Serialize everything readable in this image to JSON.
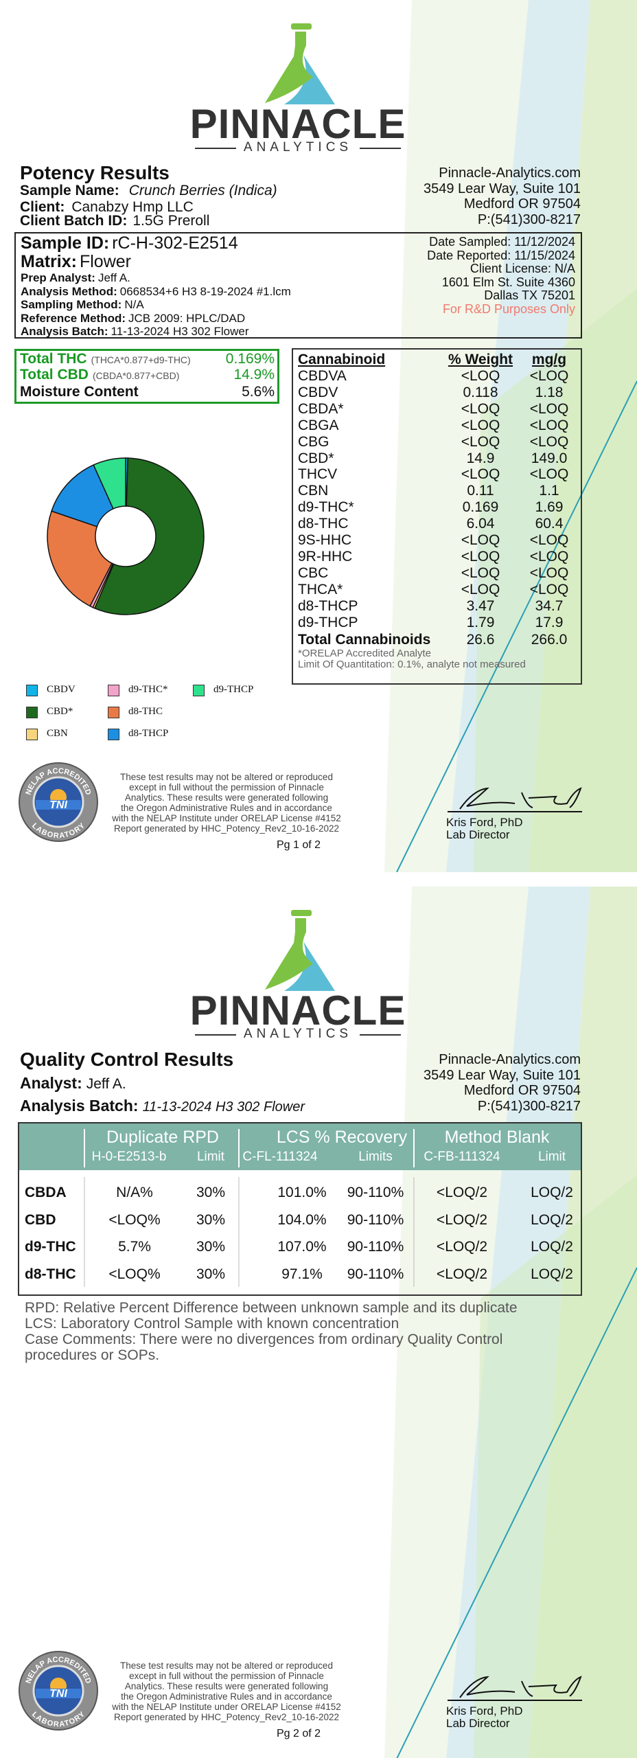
{
  "company": {
    "name": "PINNACLE",
    "sub": "ANALYTICS",
    "website": "Pinnacle-Analytics.com",
    "address1": "3549 Lear Way, Suite 101",
    "address2": "Medford OR 97504",
    "phone": "P:(541)300-8217"
  },
  "seal": {
    "top": "NELAP ACCREDITED",
    "center": "TNI",
    "bottom": "LABORATORY"
  },
  "disclaimer": [
    "These test results may not be altered or reproduced",
    "except in full without the permission of Pinnacle",
    "Analytics. These results were generated following",
    "the Oregon Administrative Rules and in accordance",
    "with the NELAP Institute under ORELAP License #4152",
    "Report generated by HHC_Potency_Rev2_10-16-2022"
  ],
  "signature": {
    "name": "Kris Ford, PhD",
    "title": "Lab Director"
  },
  "page1": {
    "title": "Potency Results",
    "sample_name": {
      "label": "Sample Name:",
      "value": "Crunch Berries (Indica)"
    },
    "client": {
      "label": "Client:",
      "value": "Canabzy Hmp LLC"
    },
    "batch": {
      "label": "Client Batch ID:",
      "value": "1.5G Preroll"
    },
    "sample_id": {
      "label": "Sample ID:",
      "value": "rC-H-302-E2514"
    },
    "matrix": {
      "label": "Matrix:",
      "value": "Flower"
    },
    "details": [
      {
        "label": "Prep Analyst:",
        "value": "Jeff A."
      },
      {
        "label": "Analysis Method:",
        "value": "0668534+6 H3 8-19-2024 #1.lcm"
      },
      {
        "label": "Sampling Method:",
        "value": "N/A"
      },
      {
        "label": "Reference Method:",
        "value": "JCB 2009: HPLC/DAD"
      },
      {
        "label": "Analysis Batch:",
        "value": "11-13-2024 H3 302 Flower"
      }
    ],
    "info": [
      "Date Sampled:  11/12/2024",
      "Date Reported: 11/15/2024",
      "Client License: N/A",
      "1601 Elm St. Suite 4360",
      "Dallas TX 75201"
    ],
    "rd_note": "For R&D Purposes Only",
    "totals": [
      {
        "label": "Total THC",
        "formula": "(THCA*0.877+d9-THC)",
        "value": "0.169%"
      },
      {
        "label": "Total CBD",
        "formula": "(CBDA*0.877+CBD)",
        "value": "14.9%"
      }
    ],
    "moisture": {
      "label": "Moisture Content",
      "value": "5.6%"
    },
    "cannabinoids": {
      "header": [
        "Cannabinoid",
        "% Weight",
        "mg/g"
      ],
      "rows": [
        [
          "CBDVA",
          "<LOQ",
          "<LOQ"
        ],
        [
          "CBDV",
          "0.118",
          "1.18"
        ],
        [
          "CBDA*",
          "<LOQ",
          "<LOQ"
        ],
        [
          "CBGA",
          "<LOQ",
          "<LOQ"
        ],
        [
          "CBG",
          "<LOQ",
          "<LOQ"
        ],
        [
          "CBD*",
          "14.9",
          "149.0"
        ],
        [
          "THCV",
          "<LOQ",
          "<LOQ"
        ],
        [
          "CBN",
          "0.11",
          "1.1"
        ],
        [
          "d9-THC*",
          "0.169",
          "1.69"
        ],
        [
          "d8-THC",
          "6.04",
          "60.4"
        ],
        [
          "9S-HHC",
          "<LOQ",
          "<LOQ"
        ],
        [
          "9R-HHC",
          "<LOQ",
          "<LOQ"
        ],
        [
          "CBC",
          "<LOQ",
          "<LOQ"
        ],
        [
          "THCA*",
          "<LOQ",
          "<LOQ"
        ],
        [
          "d8-THCP",
          "3.47",
          "34.7"
        ],
        [
          "d9-THCP",
          "1.79",
          "17.9"
        ]
      ],
      "total": [
        "Total Cannabinoids",
        "26.6",
        "266.0"
      ],
      "notes": [
        "*ORELAP Accredited Analyte",
        "Limit Of Quantitation: 0.1%, analyte not measured"
      ]
    },
    "chart": {
      "type": "pie",
      "legend": [
        {
          "name": "CBDV",
          "color": "#12b4e8"
        },
        {
          "name": "CBD*",
          "color": "#1f6a1f"
        },
        {
          "name": "CBN",
          "color": "#f6d57e"
        },
        {
          "name": "d9-THC*",
          "color": "#f2a3c9"
        },
        {
          "name": "d8-THC",
          "color": "#e97a46"
        },
        {
          "name": "d8-THCP",
          "color": "#1d8fe3"
        },
        {
          "name": "d9-THCP",
          "color": "#2fe08c"
        }
      ]
    },
    "page_label": "Pg 1 of 2"
  },
  "page2": {
    "title": "Quality Control Results",
    "analyst": {
      "label": "Analyst:",
      "value": "Jeff A."
    },
    "batch": {
      "label": "Analysis Batch:",
      "value": "11-13-2024 H3 302 Flower"
    },
    "qc": {
      "groups": [
        {
          "title": "Duplicate RPD",
          "id": "H-0-E2513-b",
          "limit": "Limit"
        },
        {
          "title": "LCS % Recovery",
          "id": "C-FL-111324",
          "limit": "Limits"
        },
        {
          "title": "Method Blank",
          "id": "C-FB-111324",
          "limit": "Limit"
        }
      ],
      "rows": [
        [
          "CBDA",
          "N/A%",
          "30%",
          "101.0%",
          "90-110%",
          "<LOQ/2",
          "LOQ/2"
        ],
        [
          "CBD",
          "<LOQ%",
          "30%",
          "104.0%",
          "90-110%",
          "<LOQ/2",
          "LOQ/2"
        ],
        [
          "d9-THC",
          "5.7%",
          "30%",
          "107.0%",
          "90-110%",
          "<LOQ/2",
          "LOQ/2"
        ],
        [
          "d8-THC",
          "<LOQ%",
          "30%",
          "97.1%",
          "90-110%",
          "<LOQ/2",
          "LOQ/2"
        ]
      ]
    },
    "notes": [
      "RPD: Relative Percent Difference between unknown sample and its duplicate",
      "LCS: Laboratory Control Sample with known concentration",
      "Case Comments: There were no divergences from ordinary Quality Control",
      "procedures or SOPs."
    ],
    "page_label": "Pg 2 of 2"
  }
}
